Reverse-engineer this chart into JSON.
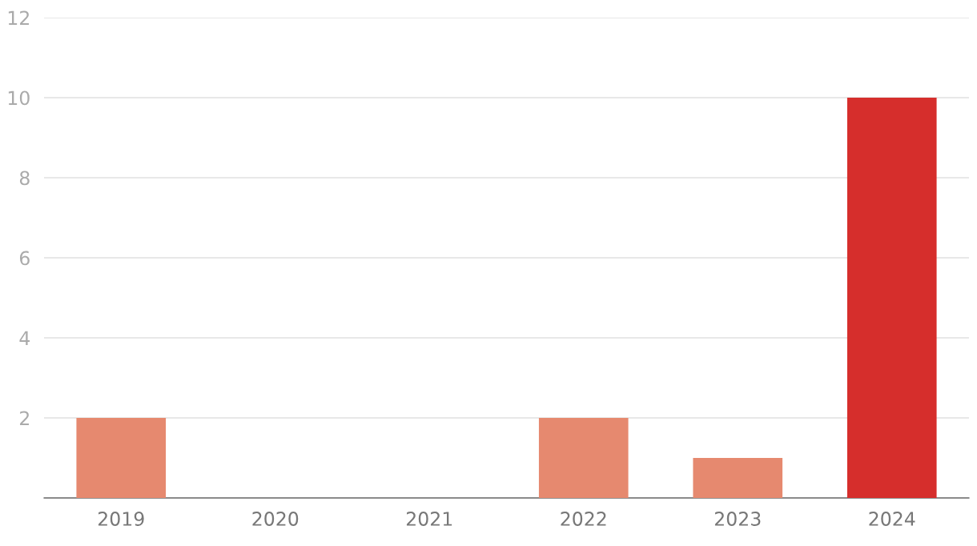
{
  "chart_data": {
    "type": "bar",
    "categories": [
      "2019",
      "2020",
      "2021",
      "2022",
      "2023",
      "2024"
    ],
    "values": [
      2,
      0,
      0,
      2,
      1,
      10
    ],
    "colors": [
      "#e6896f",
      "#e6896f",
      "#e6896f",
      "#e6896f",
      "#e6896f",
      "#d62e2c"
    ],
    "ylim": [
      0,
      12
    ],
    "yticks": [
      {
        "value": 0,
        "label": null
      },
      2,
      4,
      6,
      8,
      10,
      12
    ],
    "grid": "y"
  }
}
